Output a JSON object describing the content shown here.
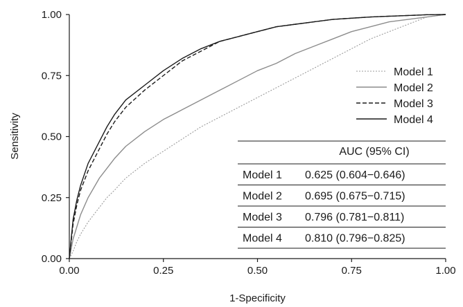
{
  "chart_data": {
    "type": "line",
    "xlabel": "1-Specificity",
    "ylabel": "Sensitivity",
    "xlim": [
      0,
      1
    ],
    "ylim": [
      0,
      1
    ],
    "x_ticks": [
      "0.00",
      "0.25",
      "0.50",
      "0.75",
      "1.00"
    ],
    "y_ticks": [
      "0.00",
      "0.25",
      "0.50",
      "0.75",
      "1.00"
    ],
    "grid": false,
    "legend_position": "right",
    "series": [
      {
        "name": "Model 1",
        "color": "#9a9a9a",
        "dash": "dotted",
        "x": [
          0,
          0.01,
          0.02,
          0.03,
          0.05,
          0.08,
          0.1,
          0.12,
          0.15,
          0.2,
          0.25,
          0.3,
          0.35,
          0.4,
          0.45,
          0.5,
          0.55,
          0.6,
          0.65,
          0.7,
          0.75,
          0.8,
          0.85,
          0.9,
          0.95,
          1.0
        ],
        "y": [
          0,
          0.03,
          0.07,
          0.1,
          0.15,
          0.21,
          0.25,
          0.28,
          0.33,
          0.39,
          0.44,
          0.49,
          0.54,
          0.58,
          0.62,
          0.66,
          0.7,
          0.74,
          0.78,
          0.82,
          0.86,
          0.9,
          0.93,
          0.96,
          0.99,
          1.0
        ]
      },
      {
        "name": "Model 2",
        "color": "#8c8c8c",
        "dash": "solid",
        "x": [
          0,
          0.01,
          0.02,
          0.03,
          0.05,
          0.08,
          0.1,
          0.12,
          0.15,
          0.2,
          0.25,
          0.3,
          0.35,
          0.4,
          0.45,
          0.5,
          0.55,
          0.6,
          0.65,
          0.7,
          0.75,
          0.8,
          0.85,
          0.9,
          0.95,
          1.0
        ],
        "y": [
          0,
          0.08,
          0.13,
          0.18,
          0.25,
          0.33,
          0.37,
          0.41,
          0.46,
          0.52,
          0.57,
          0.61,
          0.65,
          0.69,
          0.73,
          0.77,
          0.8,
          0.84,
          0.87,
          0.9,
          0.93,
          0.95,
          0.97,
          0.98,
          0.99,
          1.0
        ]
      },
      {
        "name": "Model 3",
        "color": "#1a1a1a",
        "dash": "dashed",
        "x": [
          0,
          0.01,
          0.02,
          0.03,
          0.05,
          0.08,
          0.1,
          0.12,
          0.15,
          0.2,
          0.25,
          0.3,
          0.35,
          0.4,
          0.45,
          0.5,
          0.55,
          0.6,
          0.65,
          0.7,
          0.75,
          0.8,
          0.85,
          0.9,
          0.95,
          1.0
        ],
        "y": [
          0,
          0.14,
          0.22,
          0.28,
          0.36,
          0.45,
          0.51,
          0.56,
          0.62,
          0.69,
          0.75,
          0.81,
          0.85,
          0.89,
          0.91,
          0.93,
          0.95,
          0.96,
          0.97,
          0.98,
          0.985,
          0.99,
          0.993,
          0.996,
          0.999,
          1.0
        ]
      },
      {
        "name": "Model 4",
        "color": "#1a1a1a",
        "dash": "solid",
        "x": [
          0,
          0.01,
          0.02,
          0.03,
          0.05,
          0.08,
          0.1,
          0.12,
          0.15,
          0.2,
          0.25,
          0.3,
          0.35,
          0.4,
          0.45,
          0.5,
          0.55,
          0.6,
          0.65,
          0.7,
          0.75,
          0.8,
          0.85,
          0.9,
          0.95,
          1.0
        ],
        "y": [
          0,
          0.16,
          0.24,
          0.3,
          0.39,
          0.48,
          0.54,
          0.59,
          0.65,
          0.71,
          0.77,
          0.82,
          0.86,
          0.89,
          0.91,
          0.93,
          0.95,
          0.96,
          0.97,
          0.98,
          0.985,
          0.99,
          0.993,
          0.996,
          0.999,
          1.0
        ]
      }
    ],
    "auc_table": {
      "header": "AUC (95% CI)",
      "rows": [
        {
          "model": "Model 1",
          "value": "0.625 (0.604−0.646)"
        },
        {
          "model": "Model 2",
          "value": "0.695 (0.675−0.715)"
        },
        {
          "model": "Model 3",
          "value": "0.796 (0.781−0.811)"
        },
        {
          "model": "Model 4",
          "value": "0.810 (0.796−0.825)"
        }
      ]
    }
  }
}
